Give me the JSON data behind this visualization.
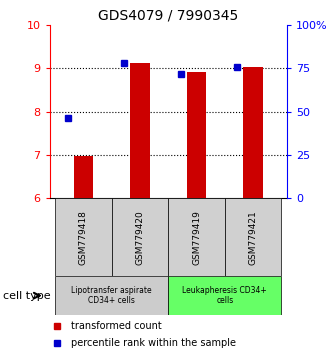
{
  "title": "GDS4079 / 7990345",
  "samples": [
    "GSM779418",
    "GSM779420",
    "GSM779419",
    "GSM779421"
  ],
  "bar_values": [
    6.97,
    9.12,
    8.92,
    9.02
  ],
  "bar_baseline": 6.0,
  "percentile_values": [
    7.85,
    9.12,
    8.87,
    9.02
  ],
  "bar_color": "#cc0000",
  "dot_color": "#0000cc",
  "ylim_left": [
    6,
    10
  ],
  "ylim_right": [
    0,
    100
  ],
  "yticks_left": [
    6,
    7,
    8,
    9,
    10
  ],
  "yticks_right": [
    0,
    25,
    50,
    75,
    100
  ],
  "ytick_labels_right": [
    "0",
    "25",
    "50",
    "75",
    "100%"
  ],
  "groups": [
    {
      "label": "Lipotransfer aspirate\nCD34+ cells",
      "samples": [
        0,
        1
      ],
      "color": "#cccccc"
    },
    {
      "label": "Leukapheresis CD34+\ncells",
      "samples": [
        2,
        3
      ],
      "color": "#66ff66"
    }
  ],
  "cell_type_label": "cell type",
  "legend_bar_label": "transformed count",
  "legend_dot_label": "percentile rank within the sample",
  "background_color": "#ffffff"
}
